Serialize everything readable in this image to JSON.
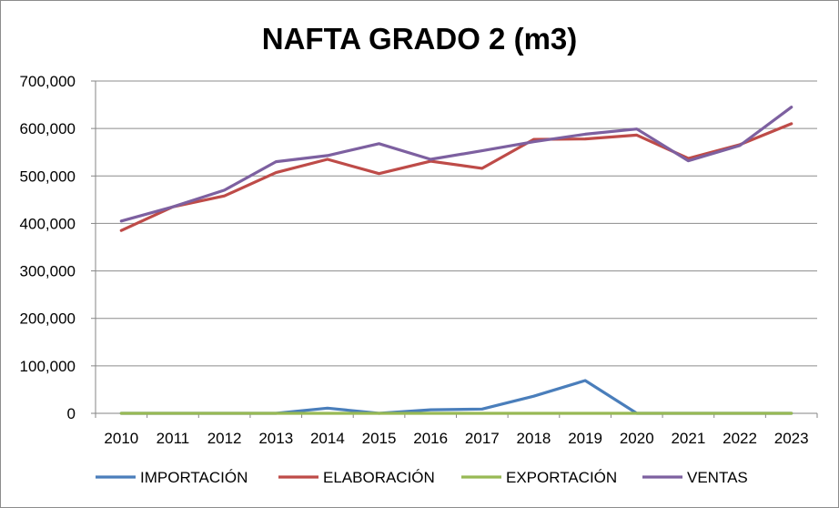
{
  "chart_data": {
    "type": "line",
    "title": "NAFTA GRADO 2 (m3)",
    "xlabel": "",
    "ylabel": "",
    "ylim": [
      0,
      700000
    ],
    "yticks": [
      "0",
      "100,000",
      "200,000",
      "300,000",
      "400,000",
      "500,000",
      "600,000",
      "700,000"
    ],
    "categories": [
      "2010",
      "2011",
      "2012",
      "2013",
      "2014",
      "2015",
      "2016",
      "2017",
      "2018",
      "2019",
      "2020",
      "2021",
      "2022",
      "2023"
    ],
    "grid": true,
    "legend_position": "bottom",
    "series": [
      {
        "name": "IMPORTACIÓN",
        "color": "#4a7ebb",
        "values": [
          0,
          0,
          0,
          0,
          11000,
          0,
          7500,
          9000,
          36000,
          69000,
          0,
          0,
          0,
          0
        ]
      },
      {
        "name": "ELABORACIÓN",
        "color": "#be4b48",
        "values": [
          385000,
          435000,
          458000,
          507000,
          535000,
          505000,
          531000,
          516000,
          577000,
          578000,
          586000,
          537000,
          566000,
          610000
        ]
      },
      {
        "name": "EXPORTACIÓN",
        "color": "#98b954",
        "values": [
          0,
          0,
          0,
          0,
          0,
          0,
          0,
          0,
          0,
          0,
          0,
          0,
          0,
          0
        ]
      },
      {
        "name": "VENTAS",
        "color": "#7d60a0",
        "values": [
          405000,
          435000,
          470000,
          530000,
          543000,
          568000,
          535000,
          553000,
          572000,
          588000,
          599000,
          532000,
          564000,
          645000
        ]
      }
    ]
  }
}
